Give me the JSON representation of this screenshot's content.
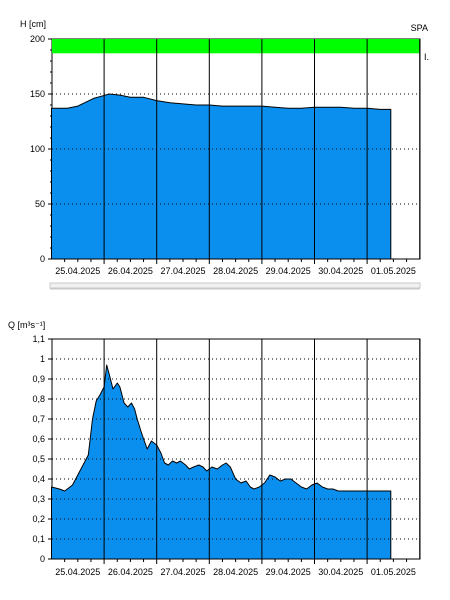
{
  "chart_data": [
    {
      "type": "area",
      "ylabel": "H [cm]",
      "station_code": "SPA",
      "corner_mark": "I.",
      "ylim": [
        0,
        200
      ],
      "yticks": [
        "0",
        "50",
        "100",
        "150",
        "200"
      ],
      "x_labels": [
        "25.04.2025",
        "26.04.2025",
        "27.04.2025",
        "28.04.2025",
        "29.04.2025",
        "30.04.2025",
        "01.05.2025"
      ],
      "band": {
        "from": 187,
        "to": 200,
        "color": "#00ff00"
      },
      "fill_color": "#0b8fef",
      "series": [
        {
          "x_days": [
            0,
            0.3,
            0.5,
            0.8,
            0.95,
            1.1,
            1.3,
            1.5,
            1.75,
            2.0,
            2.25,
            2.5,
            2.75,
            3.0,
            3.25,
            3.5,
            3.75,
            4.0,
            4.25,
            4.5,
            4.75,
            5.0,
            5.25,
            5.5,
            5.75,
            6.0,
            6.25,
            6.45
          ],
          "values": [
            137,
            137,
            139,
            146,
            148,
            150,
            149,
            147,
            147,
            144,
            142,
            141,
            140,
            140,
            139,
            139,
            139,
            139,
            138,
            137,
            137,
            138,
            138,
            138,
            137,
            137,
            136,
            136
          ]
        }
      ]
    },
    {
      "type": "area",
      "ylabel": "Q [m³s⁻¹]",
      "ylim": [
        0,
        1.1
      ],
      "yticks": [
        "0",
        "0,1",
        "0,2",
        "0,3",
        "0,4",
        "0,5",
        "0,6",
        "0,7",
        "0,8",
        "0,9",
        "1",
        "1,1"
      ],
      "x_labels": [
        "25.04.2025",
        "26.04.2025",
        "27.04.2025",
        "28.04.2025",
        "29.04.2025",
        "30.04.2025",
        "01.05.2025"
      ],
      "fill_color": "#0b8fef",
      "series": [
        {
          "x_days": [
            0,
            0.15,
            0.25,
            0.4,
            0.5,
            0.62,
            0.7,
            0.78,
            0.85,
            0.92,
            1.0,
            1.05,
            1.1,
            1.17,
            1.25,
            1.3,
            1.38,
            1.45,
            1.52,
            1.58,
            1.63,
            1.7,
            1.75,
            1.82,
            1.9,
            2.0,
            2.08,
            2.15,
            2.22,
            2.3,
            2.38,
            2.45,
            2.55,
            2.62,
            2.7,
            2.8,
            2.88,
            2.95,
            3.05,
            3.15,
            3.25,
            3.32,
            3.4,
            3.5,
            3.6,
            3.7,
            3.78,
            3.85,
            3.95,
            4.05,
            4.15,
            4.25,
            4.35,
            4.45,
            4.55,
            4.65,
            4.75,
            4.85,
            4.95,
            5.05,
            5.15,
            5.25,
            5.35,
            5.45,
            5.55,
            5.65,
            5.75,
            5.85,
            5.95,
            6.05,
            6.15,
            6.25,
            6.35,
            6.45
          ],
          "values": [
            0.36,
            0.35,
            0.34,
            0.37,
            0.42,
            0.48,
            0.52,
            0.7,
            0.79,
            0.82,
            0.86,
            0.97,
            0.92,
            0.85,
            0.88,
            0.86,
            0.78,
            0.76,
            0.78,
            0.75,
            0.7,
            0.64,
            0.6,
            0.55,
            0.59,
            0.57,
            0.53,
            0.48,
            0.47,
            0.49,
            0.48,
            0.49,
            0.47,
            0.45,
            0.46,
            0.47,
            0.46,
            0.44,
            0.46,
            0.45,
            0.47,
            0.48,
            0.46,
            0.4,
            0.38,
            0.39,
            0.36,
            0.35,
            0.36,
            0.38,
            0.42,
            0.41,
            0.39,
            0.4,
            0.4,
            0.38,
            0.36,
            0.35,
            0.37,
            0.38,
            0.36,
            0.35,
            0.35,
            0.34,
            0.34,
            0.34,
            0.34,
            0.34,
            0.34,
            0.34,
            0.34,
            0.34,
            0.34,
            0.34
          ]
        }
      ]
    }
  ]
}
